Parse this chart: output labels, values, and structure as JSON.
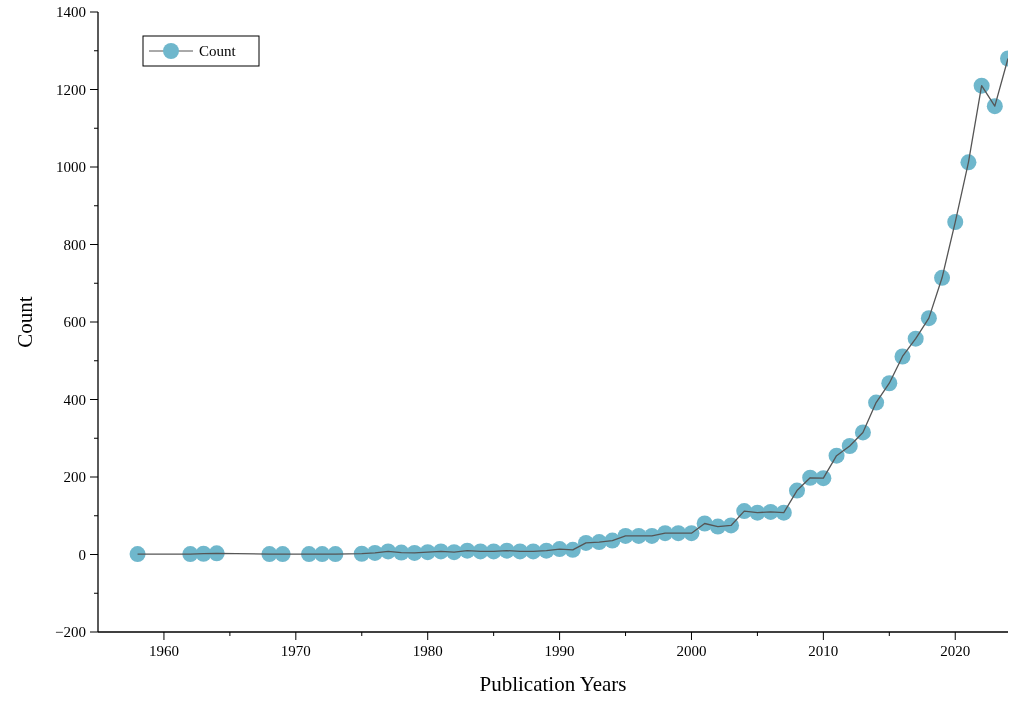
{
  "chart_data": {
    "type": "line",
    "xlabel": "Publication Years",
    "ylabel": "Count",
    "x": [
      1958,
      1962,
      1963,
      1964,
      1968,
      1969,
      1971,
      1972,
      1973,
      1975,
      1976,
      1977,
      1978,
      1979,
      1980,
      1981,
      1982,
      1983,
      1984,
      1985,
      1986,
      1987,
      1988,
      1989,
      1990,
      1991,
      1992,
      1993,
      1994,
      1995,
      1996,
      1997,
      1998,
      1999,
      2000,
      2001,
      2002,
      2003,
      2004,
      2005,
      2006,
      2007,
      2008,
      2009,
      2010,
      2011,
      2012,
      2013,
      2014,
      2015,
      2016,
      2017,
      2018,
      2019,
      2020,
      2021,
      2022,
      2023,
      2024
    ],
    "series": [
      {
        "name": "Count",
        "color": "#6fb7cc",
        "values": [
          1,
          1,
          2,
          3,
          1,
          1,
          1,
          1,
          1,
          2,
          4,
          8,
          5,
          4,
          6,
          8,
          6,
          10,
          8,
          8,
          10,
          8,
          8,
          10,
          14,
          12,
          30,
          32,
          36,
          48,
          48,
          48,
          55,
          55,
          55,
          80,
          72,
          75,
          112,
          108,
          110,
          108,
          165,
          198,
          197,
          255,
          280,
          315,
          392,
          442,
          511,
          557,
          610,
          714,
          858,
          1012,
          1210,
          1157,
          1280
        ]
      }
    ],
    "xlim": [
      1955,
      2024
    ],
    "xticks": [
      1960,
      1970,
      1980,
      1990,
      2000,
      2010,
      2020
    ],
    "ylim": [
      -200,
      1400
    ],
    "yticks": [
      -200,
      0,
      200,
      400,
      600,
      800,
      1000,
      1200,
      1400
    ],
    "marker": "circle",
    "line_style": "solid",
    "legend": "top left",
    "grid": false
  }
}
